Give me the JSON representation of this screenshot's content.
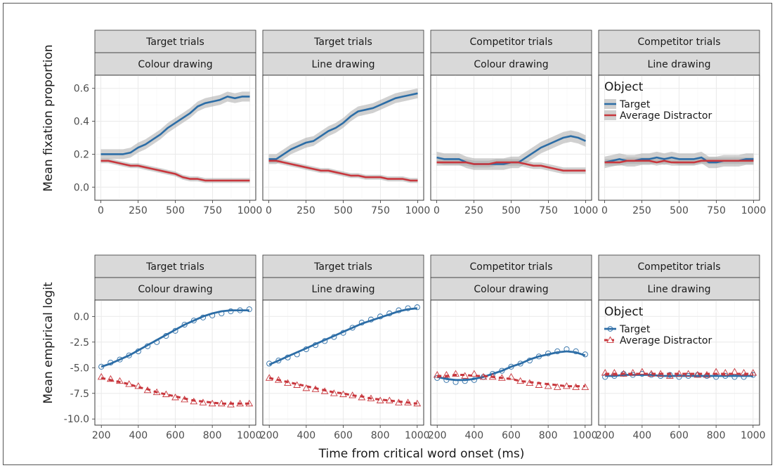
{
  "figure": {
    "x_axis_title": "Time from critical word onset (ms)"
  },
  "colors": {
    "target": "#2c6da6",
    "distractor": "#c8373d",
    "ribbon": "#aaaaaa",
    "strip": "#d9d9d9"
  },
  "legend": {
    "title": "Object",
    "labels": [
      "Target",
      "Average Distractor"
    ]
  },
  "chart_data": [
    {
      "type": "line",
      "ylabel": "Mean fixation proportion",
      "xlim": [
        -40,
        1040
      ],
      "ylim": [
        -0.08,
        0.68
      ],
      "xticks": [
        0,
        250,
        500,
        750,
        1000
      ],
      "xtick_labels": [
        "0",
        "250",
        "500",
        "750",
        "1000"
      ],
      "yticks": [
        0.0,
        0.2,
        0.4,
        0.6
      ],
      "ytick_labels": [
        "0.0",
        "0.2",
        "0.4",
        "0.6"
      ],
      "legend_position": "inside last panel, top-left",
      "legend_panel": 3,
      "x": [
        0,
        50,
        100,
        150,
        200,
        250,
        300,
        350,
        400,
        450,
        500,
        550,
        600,
        650,
        700,
        750,
        800,
        850,
        900,
        950,
        1000
      ],
      "panels": [
        {
          "strip_top": "Target trials",
          "strip_bottom": "Colour drawing",
          "series": [
            {
              "name": "Target",
              "ribbon": 0.03,
              "values": [
                0.2,
                0.2,
                0.2,
                0.2,
                0.21,
                0.24,
                0.26,
                0.29,
                0.32,
                0.36,
                0.39,
                0.42,
                0.45,
                0.49,
                0.51,
                0.52,
                0.53,
                0.55,
                0.54,
                0.55,
                0.55
              ]
            },
            {
              "name": "Average Distractor",
              "ribbon": 0.015,
              "values": [
                0.16,
                0.16,
                0.15,
                0.14,
                0.13,
                0.13,
                0.12,
                0.11,
                0.1,
                0.09,
                0.08,
                0.06,
                0.05,
                0.05,
                0.04,
                0.04,
                0.04,
                0.04,
                0.04,
                0.04,
                0.04
              ]
            }
          ]
        },
        {
          "strip_top": "Target trials",
          "strip_bottom": "Line drawing",
          "series": [
            {
              "name": "Target",
              "ribbon": 0.03,
              "values": [
                0.17,
                0.17,
                0.2,
                0.23,
                0.25,
                0.27,
                0.28,
                0.31,
                0.34,
                0.36,
                0.39,
                0.43,
                0.46,
                0.47,
                0.48,
                0.5,
                0.52,
                0.54,
                0.55,
                0.56,
                0.57
              ]
            },
            {
              "name": "Average Distractor",
              "ribbon": 0.015,
              "values": [
                0.16,
                0.16,
                0.15,
                0.14,
                0.13,
                0.12,
                0.11,
                0.1,
                0.1,
                0.09,
                0.08,
                0.07,
                0.07,
                0.06,
                0.06,
                0.06,
                0.05,
                0.05,
                0.05,
                0.04,
                0.04
              ]
            }
          ]
        },
        {
          "strip_top": "Competitor trials",
          "strip_bottom": "Colour drawing",
          "series": [
            {
              "name": "Target",
              "ribbon": 0.035,
              "values": [
                0.18,
                0.17,
                0.17,
                0.17,
                0.15,
                0.14,
                0.14,
                0.14,
                0.14,
                0.14,
                0.15,
                0.15,
                0.18,
                0.21,
                0.24,
                0.26,
                0.28,
                0.3,
                0.31,
                0.3,
                0.28
              ]
            },
            {
              "name": "Average Distractor",
              "ribbon": 0.02,
              "values": [
                0.15,
                0.15,
                0.15,
                0.15,
                0.15,
                0.14,
                0.14,
                0.14,
                0.15,
                0.15,
                0.15,
                0.15,
                0.14,
                0.13,
                0.13,
                0.12,
                0.11,
                0.1,
                0.1,
                0.1,
                0.1
              ]
            }
          ]
        },
        {
          "strip_top": "Competitor trials",
          "strip_bottom": "Line drawing",
          "series": [
            {
              "name": "Target",
              "ribbon": 0.035,
              "values": [
                0.15,
                0.16,
                0.17,
                0.16,
                0.16,
                0.17,
                0.17,
                0.18,
                0.17,
                0.18,
                0.17,
                0.17,
                0.17,
                0.18,
                0.15,
                0.15,
                0.16,
                0.16,
                0.16,
                0.17,
                0.17
              ]
            },
            {
              "name": "Average Distractor",
              "ribbon": 0.02,
              "values": [
                0.15,
                0.15,
                0.15,
                0.16,
                0.16,
                0.16,
                0.16,
                0.15,
                0.16,
                0.15,
                0.15,
                0.15,
                0.15,
                0.16,
                0.16,
                0.16,
                0.16,
                0.16,
                0.16,
                0.16,
                0.16
              ]
            }
          ]
        }
      ]
    },
    {
      "type": "scatter",
      "ylabel": "Mean empirical logit",
      "xlim": [
        165,
        1035
      ],
      "ylim": [
        -10.6,
        1.6
      ],
      "xticks": [
        200,
        400,
        600,
        800,
        1000
      ],
      "xtick_labels": [
        "200",
        "400",
        "600",
        "800",
        "1000"
      ],
      "yticks": [
        0.0,
        -2.5,
        -5.0,
        -7.5,
        -10.0
      ],
      "ytick_labels": [
        "0.0",
        "-2.5",
        "-5.0",
        "-7.5",
        "-10.0"
      ],
      "legend_position": "inside last panel, top-left",
      "legend_panel": 3,
      "x": [
        200,
        250,
        300,
        350,
        400,
        450,
        500,
        550,
        600,
        650,
        700,
        750,
        800,
        850,
        900,
        950,
        1000
      ],
      "panels": [
        {
          "strip_top": "Target trials",
          "strip_bottom": "Colour drawing",
          "series": [
            {
              "name": "Target",
              "marker": "circle",
              "points": [
                -4.9,
                -4.5,
                -4.2,
                -3.8,
                -3.4,
                -2.9,
                -2.5,
                -1.9,
                -1.4,
                -0.8,
                -0.4,
                -0.1,
                0.1,
                0.3,
                0.5,
                0.6,
                0.7
              ],
              "fit": [
                -4.9,
                -4.6,
                -4.2,
                -3.8,
                -3.3,
                -2.8,
                -2.3,
                -1.8,
                -1.3,
                -0.8,
                -0.4,
                0.0,
                0.3,
                0.5,
                0.6,
                0.6,
                0.6
              ]
            },
            {
              "name": "Average Distractor",
              "marker": "triangle",
              "points": [
                -5.9,
                -6.1,
                -6.3,
                -6.6,
                -6.8,
                -7.2,
                -7.4,
                -7.6,
                -7.9,
                -8.1,
                -8.3,
                -8.4,
                -8.5,
                -8.5,
                -8.6,
                -8.5,
                -8.5
              ],
              "fit": [
                -6.0,
                -6.2,
                -6.4,
                -6.6,
                -6.9,
                -7.1,
                -7.4,
                -7.6,
                -7.8,
                -8.0,
                -8.2,
                -8.3,
                -8.4,
                -8.5,
                -8.5,
                -8.5,
                -8.5
              ]
            }
          ]
        },
        {
          "strip_top": "Target trials",
          "strip_bottom": "Line drawing",
          "series": [
            {
              "name": "Target",
              "marker": "circle",
              "points": [
                -4.6,
                -4.3,
                -4.0,
                -3.7,
                -3.2,
                -2.8,
                -2.4,
                -2.0,
                -1.6,
                -1.1,
                -0.6,
                -0.3,
                0.0,
                0.3,
                0.6,
                0.8,
                0.9
              ],
              "fit": [
                -4.7,
                -4.3,
                -3.9,
                -3.5,
                -3.1,
                -2.7,
                -2.3,
                -1.9,
                -1.5,
                -1.1,
                -0.7,
                -0.4,
                -0.1,
                0.2,
                0.5,
                0.7,
                0.8
              ]
            },
            {
              "name": "Average Distractor",
              "marker": "triangle",
              "points": [
                -6.0,
                -6.2,
                -6.5,
                -6.7,
                -7.0,
                -7.1,
                -7.3,
                -7.5,
                -7.6,
                -7.7,
                -7.9,
                -8.0,
                -8.2,
                -8.2,
                -8.4,
                -8.4,
                -8.5
              ],
              "fit": [
                -6.0,
                -6.2,
                -6.4,
                -6.6,
                -6.8,
                -7.0,
                -7.2,
                -7.4,
                -7.5,
                -7.7,
                -7.8,
                -8.0,
                -8.1,
                -8.2,
                -8.3,
                -8.4,
                -8.5
              ]
            }
          ]
        },
        {
          "strip_top": "Competitor trials",
          "strip_bottom": "Colour drawing",
          "series": [
            {
              "name": "Target",
              "marker": "circle",
              "points": [
                -6.0,
                -6.2,
                -6.4,
                -6.3,
                -6.2,
                -5.9,
                -5.6,
                -5.3,
                -4.9,
                -4.6,
                -4.3,
                -3.9,
                -3.6,
                -3.4,
                -3.2,
                -3.4,
                -3.7
              ],
              "fit": [
                -5.9,
                -6.1,
                -6.2,
                -6.2,
                -6.1,
                -5.9,
                -5.6,
                -5.3,
                -4.9,
                -4.6,
                -4.2,
                -3.9,
                -3.7,
                -3.5,
                -3.4,
                -3.5,
                -3.8
              ]
            },
            {
              "name": "Average Distractor",
              "marker": "triangle",
              "points": [
                -5.7,
                -5.7,
                -5.6,
                -5.8,
                -5.6,
                -5.9,
                -5.9,
                -6.0,
                -5.9,
                -6.3,
                -6.5,
                -6.7,
                -6.8,
                -6.9,
                -6.8,
                -6.9,
                -6.9
              ],
              "fit": [
                -5.8,
                -5.8,
                -5.7,
                -5.7,
                -5.8,
                -5.8,
                -5.9,
                -6.0,
                -6.1,
                -6.3,
                -6.4,
                -6.5,
                -6.6,
                -6.7,
                -6.8,
                -6.8,
                -6.8
              ]
            }
          ]
        },
        {
          "strip_top": "Competitor trials",
          "strip_bottom": "Line drawing",
          "series": [
            {
              "name": "Target",
              "marker": "circle",
              "points": [
                -5.9,
                -5.8,
                -5.6,
                -5.7,
                -5.6,
                -5.7,
                -5.8,
                -5.7,
                -5.9,
                -5.8,
                -5.7,
                -5.8,
                -5.9,
                -5.8,
                -5.9,
                -5.9,
                -5.7
              ],
              "fit": [
                -5.8,
                -5.8,
                -5.7,
                -5.7,
                -5.7,
                -5.7,
                -5.8,
                -5.8,
                -5.8,
                -5.8,
                -5.8,
                -5.8,
                -5.8,
                -5.8,
                -5.8,
                -5.8,
                -5.8
              ]
            },
            {
              "name": "Average Distractor",
              "marker": "triangle",
              "points": [
                -5.5,
                -5.5,
                -5.6,
                -5.5,
                -5.4,
                -5.6,
                -5.6,
                -5.8,
                -5.6,
                -5.6,
                -5.7,
                -5.7,
                -5.4,
                -5.5,
                -5.4,
                -5.5,
                -5.5
              ],
              "fit": [
                -5.6,
                -5.6,
                -5.6,
                -5.6,
                -5.6,
                -5.6,
                -5.6,
                -5.6,
                -5.6,
                -5.6,
                -5.6,
                -5.6,
                -5.6,
                -5.6,
                -5.6,
                -5.6,
                -5.6
              ]
            }
          ]
        }
      ]
    }
  ]
}
